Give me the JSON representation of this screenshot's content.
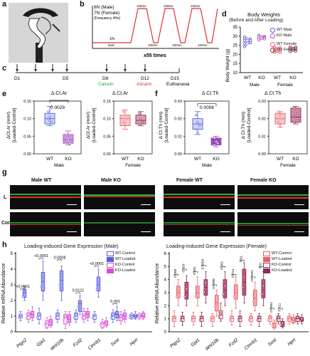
{
  "panels": {
    "a": "a",
    "b": "b",
    "c": "c",
    "d": "d",
    "e": "e",
    "f": "f",
    "g": "g",
    "h": "h"
  },
  "b": {
    "force_male": "8N (Male)",
    "force_female": "7N (Female)",
    "frequency": "(Frequency 4Hz)",
    "rest_force": "1N",
    "rest_time": "5sec",
    "pulse_time": "100ms",
    "repeat": "x55 times"
  },
  "c": {
    "d1": "D1",
    "d5": "D5",
    "d8": "D8",
    "d12": "D12",
    "d15": "D15",
    "calcein": "Calcein",
    "alizarin": "Alizarin",
    "euthanasia": "Euthanasia"
  },
  "d": {
    "title1": "Body Weights",
    "title2": "(Before and After Loading)",
    "ylabel": "Body Weight (g)",
    "yticks": [
      "10",
      "15",
      "20",
      "25",
      "30",
      "35"
    ],
    "xticks": [
      "WT",
      "KO",
      "WT",
      "KO"
    ],
    "groups": [
      "Male",
      "Female"
    ],
    "legend": [
      "WT Male",
      "KO Male",
      "WT Female",
      "KO Female"
    ]
  },
  "e": {
    "title_left": "Δ Ct.Ar",
    "title_right": "Δ Ct.Ar",
    "ylabel": "ΔCt.Ar (mm²)",
    "ylabel2": "[Loaded-Control]",
    "yticks": [
      "0.00",
      "0.05",
      "0.10",
      "0.15"
    ],
    "pval": "0.0029",
    "xticks": [
      "WT",
      "KO"
    ],
    "groups": [
      "Male",
      "Female"
    ]
  },
  "f": {
    "title_left": "Δ Ct.Th",
    "title_right": "Δ Ct.Th",
    "ylabel": "Δ Ct.Th (mm)",
    "ylabel2": "[Loaded-Control]",
    "yticks": [
      "0.00",
      "0.01",
      "0.02",
      "0.03"
    ],
    "pval": "0.0006",
    "xticks": [
      "WT",
      "KO"
    ],
    "groups": [
      "Male",
      "Female"
    ]
  },
  "g": {
    "titles": [
      "Male WT",
      "Male KO",
      "Female WT",
      "Female KO"
    ],
    "rows": [
      "L",
      "Con"
    ]
  },
  "h": {
    "title_male": "Loading-induced Gene Expression (Male)",
    "title_female": "Loading-induced Gene Expression (Female)",
    "ylabel": "Relative mRNA Abundance",
    "yticks_male": [
      "0",
      "1",
      "2",
      "3",
      "4",
      "5"
    ],
    "yticks_female": [
      "0",
      "1",
      "2",
      "3",
      "4",
      "5",
      "6"
    ],
    "genes": [
      "Ptgs2",
      "Gja1",
      "Wnt10b",
      "Fzd2",
      "Ctnnb1",
      "Sost",
      "Hprt"
    ],
    "legend_male": [
      "WT-Control",
      "WT-Loaded",
      "KO-Control",
      "KO-Loaded"
    ],
    "legend_female": [
      "WT-Control",
      "WT-Loaded",
      "KO-Control",
      "KO-Loaded"
    ],
    "pvals_male": [
      "<0.0001",
      "<0.0001",
      "0.0008",
      "0.0121",
      "<0.0001",
      "0.001"
    ],
    "pvals_female": [
      "0.005",
      "0.003",
      "0.001",
      "0.0004",
      "0.0006",
      "0.001",
      "0.014",
      "0.01",
      "<0.0001",
      "0.01",
      "0.0002",
      "0.011"
    ]
  },
  "colors": {
    "wt_male": "#5b5bd6",
    "ko_male": "#b04fc9",
    "wt_female": "#e8606a",
    "ko_female": "#8e2a4e",
    "green": "#2eaa2e",
    "red": "#e53030"
  }
}
